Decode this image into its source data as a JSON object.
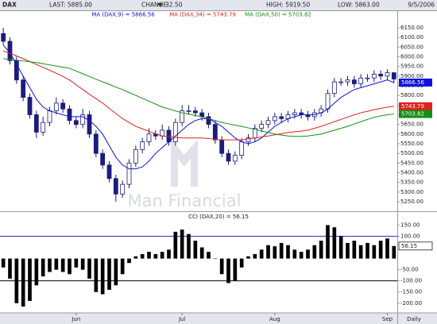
{
  "header": {
    "symbol": "DAX",
    "last": "LAST: 5885.00",
    "change_label": "CHANGE:",
    "change": "32.50",
    "high": "HIGH: 5919.50",
    "low": "LOW: 5863.00",
    "date": "9/5/2006",
    "watermark": "Man Financial"
  },
  "chart_data": [
    {
      "type": "candlestick",
      "open": [
        6120,
        6080,
        5980,
        5880,
        5790,
        5700,
        5610,
        5660,
        5720,
        5760,
        5730,
        5670,
        5650,
        5700,
        5600,
        5500,
        5440,
        5370,
        5290,
        5340,
        5450,
        5520,
        5560,
        5600,
        5590,
        5620,
        5560,
        5660,
        5720,
        5720,
        5710,
        5690,
        5650,
        5570,
        5500,
        5460,
        5490,
        5560,
        5580,
        5630,
        5650,
        5670,
        5690,
        5680,
        5700,
        5710,
        5700,
        5690,
        5710,
        5730,
        5810,
        5870,
        5870,
        5880,
        5860,
        5890,
        5890,
        5910,
        5900,
        5917.5
      ],
      "high": [
        6150,
        6100,
        6000,
        5900,
        5810,
        5720,
        5690,
        5740,
        5790,
        5780,
        5750,
        5690,
        5730,
        5720,
        5620,
        5520,
        5460,
        5390,
        5360,
        5470,
        5540,
        5580,
        5630,
        5620,
        5650,
        5640,
        5680,
        5750,
        5750,
        5740,
        5730,
        5710,
        5670,
        5590,
        5520,
        5510,
        5580,
        5600,
        5650,
        5670,
        5690,
        5710,
        5710,
        5720,
        5730,
        5730,
        5720,
        5730,
        5750,
        5830,
        5890,
        5890,
        5900,
        5900,
        5910,
        5910,
        5930,
        5930,
        5935,
        5919.5
      ],
      "low": [
        6060,
        5960,
        5860,
        5770,
        5680,
        5580,
        5590,
        5640,
        5700,
        5710,
        5650,
        5630,
        5630,
        5580,
        5480,
        5420,
        5350,
        5250,
        5270,
        5320,
        5430,
        5500,
        5540,
        5570,
        5570,
        5540,
        5540,
        5640,
        5700,
        5690,
        5670,
        5630,
        5550,
        5480,
        5440,
        5440,
        5470,
        5540,
        5560,
        5610,
        5630,
        5650,
        5660,
        5660,
        5680,
        5680,
        5670,
        5670,
        5690,
        5710,
        5790,
        5850,
        5850,
        5840,
        5840,
        5870,
        5870,
        5880,
        5880,
        5863
      ],
      "close": [
        6080,
        5980,
        5880,
        5790,
        5700,
        5610,
        5660,
        5720,
        5760,
        5730,
        5670,
        5650,
        5700,
        5600,
        5500,
        5440,
        5370,
        5290,
        5340,
        5450,
        5520,
        5560,
        5600,
        5590,
        5620,
        5560,
        5660,
        5720,
        5720,
        5710,
        5690,
        5650,
        5570,
        5500,
        5460,
        5490,
        5560,
        5580,
        5630,
        5650,
        5670,
        5690,
        5680,
        5700,
        5710,
        5700,
        5690,
        5710,
        5730,
        5810,
        5870,
        5870,
        5880,
        5860,
        5890,
        5890,
        5910,
        5900,
        5917.5,
        5885
      ],
      "up_color": "#ffffff",
      "down_color": "#1c1c7c",
      "edge_color": "#1c1c7c",
      "series": [
        {
          "name": "MA (DAX,9) = 5866.56",
          "color": "#1010e0",
          "values": [
            6060,
            6020,
            5960,
            5900,
            5840,
            5780,
            5740,
            5720,
            5710,
            5700,
            5690,
            5690,
            5690,
            5670,
            5640,
            5600,
            5540,
            5480,
            5440,
            5420,
            5420,
            5430,
            5460,
            5500,
            5530,
            5560,
            5590,
            5620,
            5650,
            5670,
            5680,
            5680,
            5660,
            5640,
            5610,
            5580,
            5560,
            5550,
            5560,
            5580,
            5610,
            5640,
            5660,
            5680,
            5690,
            5700,
            5700,
            5700,
            5710,
            5730,
            5760,
            5790,
            5810,
            5830,
            5840,
            5850,
            5860,
            5870,
            5880,
            5866.56
          ]
        },
        {
          "name": "MA (DAX,34) = 5743.79",
          "color": "#e02020",
          "values": [
            6030,
            6018,
            6004,
            5990,
            5975,
            5960,
            5945,
            5930,
            5915,
            5898,
            5880,
            5855,
            5830,
            5806,
            5783,
            5760,
            5733,
            5706,
            5680,
            5660,
            5640,
            5627,
            5614,
            5602,
            5590,
            5587,
            5583,
            5580,
            5580,
            5580,
            5580,
            5577,
            5573,
            5570,
            5570,
            5570,
            5570,
            5575,
            5580,
            5585,
            5590,
            5596,
            5602,
            5608,
            5612,
            5615,
            5620,
            5630,
            5640,
            5652,
            5664,
            5676,
            5688,
            5700,
            5710,
            5718,
            5726,
            5733,
            5739,
            5743.79
          ]
        },
        {
          "name": "MA (DAX,50) = 5703.82",
          "color": "#109010",
          "values": [
            5990,
            5986,
            5982,
            5978,
            5974,
            5970,
            5964,
            5958,
            5952,
            5946,
            5940,
            5926,
            5912,
            5898,
            5884,
            5870,
            5857,
            5843,
            5830,
            5815,
            5800,
            5785,
            5770,
            5755,
            5740,
            5730,
            5720,
            5710,
            5703,
            5696,
            5690,
            5680,
            5670,
            5660,
            5653,
            5646,
            5640,
            5632,
            5624,
            5616,
            5608,
            5600,
            5595,
            5590,
            5588,
            5588,
            5590,
            5595,
            5600,
            5610,
            5620,
            5630,
            5640,
            5652,
            5664,
            5676,
            5686,
            5694,
            5700,
            5703.82
          ]
        }
      ],
      "ylim": [
        5205,
        6236
      ],
      "yticks": [
        {
          "value": 6150,
          "label": "6150.00"
        },
        {
          "value": 6100,
          "label": "6100.00"
        },
        {
          "value": 6050,
          "label": "6050.00"
        },
        {
          "value": 6000,
          "label": "6000.00"
        },
        {
          "value": 5950,
          "label": "5950.00"
        },
        {
          "value": 5900,
          "label": "5900.00"
        },
        {
          "value": 5850,
          "label": "5850.00"
        },
        {
          "value": 5800,
          "label": "5800.00"
        },
        {
          "value": 5750,
          "label": "5750.00"
        },
        {
          "value": 5700,
          "label": "5700.00"
        },
        {
          "value": 5650,
          "label": "5650.00"
        },
        {
          "value": 5600,
          "label": "5600.00"
        },
        {
          "value": 5550,
          "label": "5550.00"
        },
        {
          "value": 5500,
          "label": "5500.00"
        },
        {
          "value": 5450,
          "label": "5450.00"
        },
        {
          "value": 5400,
          "label": "5400.00"
        },
        {
          "value": 5350,
          "label": "5350.00"
        },
        {
          "value": 5300,
          "label": "5300.00"
        },
        {
          "value": 5250,
          "label": "5250.00"
        }
      ]
    },
    {
      "type": "bar",
      "title": "CCI (DAX,20) = 56.15",
      "color": "#000000",
      "categories": [
        null,
        null,
        null,
        null,
        null,
        null,
        null,
        null,
        null,
        null,
        null,
        "Jun",
        null,
        null,
        null,
        null,
        null,
        null,
        null,
        null,
        null,
        null,
        null,
        null,
        null,
        null,
        null,
        "Jul",
        null,
        null,
        null,
        null,
        null,
        null,
        null,
        null,
        null,
        null,
        null,
        null,
        null,
        "Aug",
        null,
        null,
        null,
        null,
        null,
        null,
        null,
        null,
        null,
        null,
        null,
        null,
        null,
        null,
        null,
        null,
        "Sep",
        null
      ],
      "values": [
        -40,
        -90,
        -200,
        -215,
        -190,
        -120,
        -80,
        -60,
        -50,
        -60,
        -70,
        -40,
        -50,
        -90,
        -150,
        -160,
        -140,
        -120,
        -70,
        -20,
        10,
        20,
        30,
        20,
        30,
        40,
        120,
        130,
        110,
        80,
        50,
        30,
        0,
        -70,
        -110,
        -100,
        -40,
        10,
        20,
        40,
        60,
        55,
        70,
        60,
        40,
        30,
        40,
        60,
        80,
        150,
        140,
        100,
        70,
        80,
        60,
        70,
        60,
        80,
        90,
        56.15
      ],
      "x_label": "Daily",
      "ref_lines": [
        {
          "value": 100,
          "color": "#3030c0"
        },
        {
          "value": -100,
          "color": "#000000"
        }
      ],
      "ylim": [
        -240,
        205
      ],
      "yticks": [
        {
          "value": 150,
          "label": "150.00"
        },
        {
          "value": 100,
          "label": "100.00"
        },
        {
          "value": -50,
          "label": "-50.00"
        },
        {
          "value": -100,
          "label": "-100.00"
        },
        {
          "value": -150,
          "label": "-150.00"
        },
        {
          "value": -200,
          "label": "-200.00"
        }
      ]
    }
  ]
}
